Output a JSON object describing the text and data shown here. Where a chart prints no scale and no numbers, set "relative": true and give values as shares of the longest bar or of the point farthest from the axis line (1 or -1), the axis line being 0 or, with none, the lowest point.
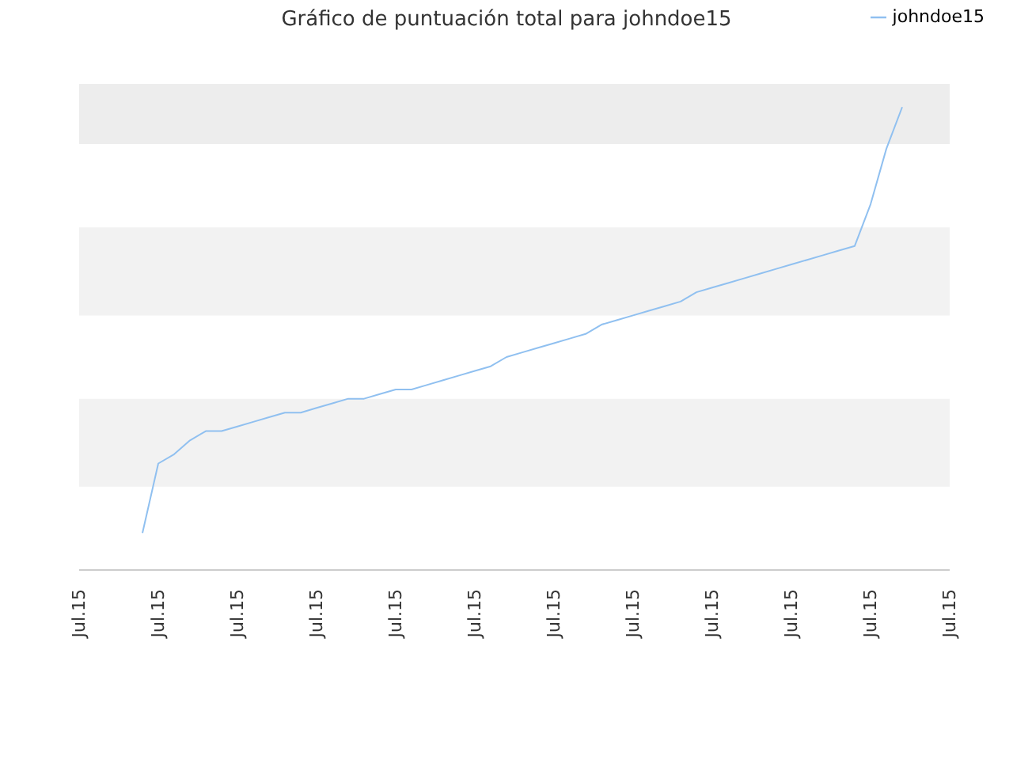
{
  "chart_data": {
    "type": "line",
    "title": "Gráfico de puntuación total para johndoe15",
    "categories": [
      "Jul.15",
      null,
      null,
      null,
      null,
      "Jul.15",
      null,
      null,
      null,
      null,
      "Jul.15",
      null,
      null,
      null,
      null,
      "Jul.15",
      null,
      null,
      null,
      null,
      "Jul.15",
      null,
      null,
      null,
      null,
      "Jul.15",
      null,
      null,
      null,
      null,
      "Jul.15",
      null,
      null,
      null,
      null,
      "Jul.15",
      null,
      null,
      null,
      null,
      "Jul.15",
      null,
      null,
      null,
      null,
      "Jul.15",
      null,
      null,
      null,
      null,
      "Jul.15",
      null,
      null,
      null,
      null,
      "Jul.15"
    ],
    "series": [
      {
        "name": "johndoe15",
        "color": "#90c0f0",
        "values": [
          null,
          null,
          null,
          null,
          0.08,
          0.23,
          0.25,
          0.28,
          0.3,
          0.3,
          0.31,
          0.32,
          0.33,
          0.34,
          0.34,
          0.35,
          0.36,
          0.37,
          0.37,
          0.38,
          0.39,
          0.39,
          0.4,
          0.41,
          0.42,
          0.43,
          0.44,
          0.46,
          0.47,
          0.48,
          0.49,
          0.5,
          0.51,
          0.53,
          0.54,
          0.55,
          0.56,
          0.57,
          0.58,
          0.6,
          0.61,
          0.62,
          0.63,
          0.64,
          0.65,
          0.66,
          0.67,
          0.68,
          0.69,
          0.7,
          0.79,
          0.91,
          1,
          null,
          null,
          null
        ]
      }
    ],
    "relative": true,
    "bands": [
      {
        "axis": "y",
        "from": 0.18,
        "to": 0.37,
        "color": "#f2f2f2"
      },
      {
        "axis": "y",
        "from": 0.55,
        "to": 0.74,
        "color": "#f2f2f2"
      },
      {
        "axis": "y",
        "from": 0.92,
        "to": 1.05,
        "color": "#ededed"
      }
    ],
    "legend": "top right",
    "marker": "none",
    "line_style": "solid"
  }
}
